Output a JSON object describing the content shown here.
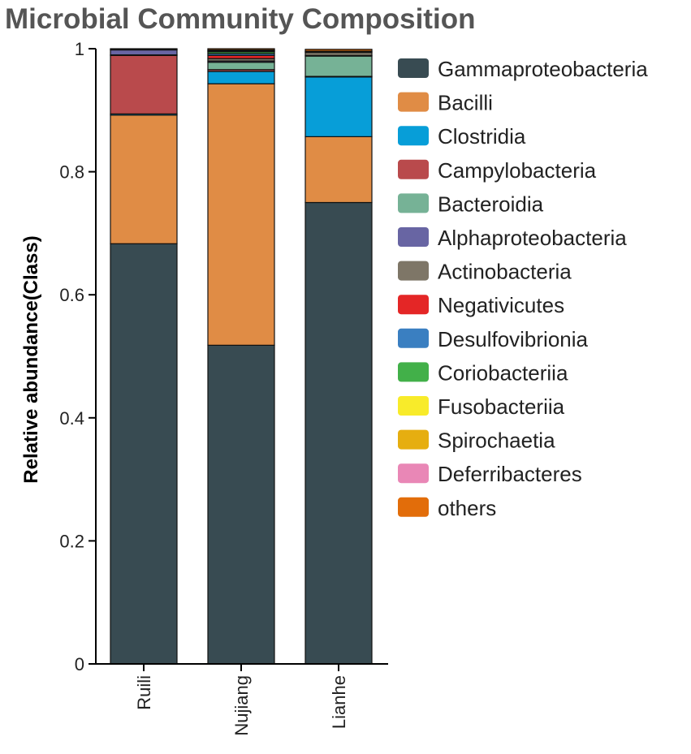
{
  "chart_data": {
    "type": "stacked-bar",
    "title": "Microbial Community Composition",
    "xlabel": "",
    "ylabel": "Relative abundance(Class)",
    "ylim": [
      0,
      1
    ],
    "yticks": [
      {
        "value": 0,
        "label": "0"
      },
      {
        "value": 0.2,
        "label": "0.2"
      },
      {
        "value": 0.4,
        "label": "0.4"
      },
      {
        "value": 0.6,
        "label": "0.6"
      },
      {
        "value": 0.8,
        "label": "0.8"
      },
      {
        "value": 1,
        "label": "1"
      }
    ],
    "categories": [
      "Ruili",
      "Nujiang",
      "Lianhe"
    ],
    "legend_position": "right",
    "series": [
      {
        "name": "Gammaproteobacteria",
        "color": "#384b52",
        "values": [
          0.683,
          0.518,
          0.75
        ]
      },
      {
        "name": "Bacilli",
        "color": "#e08c45",
        "values": [
          0.209,
          0.425,
          0.107
        ]
      },
      {
        "name": "Clostridia",
        "color": "#079ed8",
        "values": [
          0.002,
          0.02,
          0.097
        ]
      },
      {
        "name": "Campylobacteria",
        "color": "#b94a4c",
        "values": [
          0.095,
          0.003,
          0.001
        ]
      },
      {
        "name": "Bacteroidia",
        "color": "#76b296",
        "values": [
          0.001,
          0.012,
          0.033
        ]
      },
      {
        "name": "Alphaproteobacteria",
        "color": "#6865a3",
        "values": [
          0.008,
          0.002,
          0.001
        ]
      },
      {
        "name": "Actinobacteria",
        "color": "#7e7667",
        "values": [
          0.001,
          0.004,
          0.005
        ]
      },
      {
        "name": "Negativicutes",
        "color": "#e42626",
        "values": [
          0.0,
          0.005,
          0.0
        ]
      },
      {
        "name": "Desulfovibrionia",
        "color": "#3a7fc1",
        "values": [
          0.0,
          0.003,
          0.001
        ]
      },
      {
        "name": "Coriobacteriia",
        "color": "#42b049",
        "values": [
          0.0,
          0.003,
          0.001
        ]
      },
      {
        "name": "Fusobacteriia",
        "color": "#f8eb2a",
        "values": [
          0.0,
          0.001,
          0.0
        ]
      },
      {
        "name": "Spirochaetia",
        "color": "#e6ae10",
        "values": [
          0.0,
          0.001,
          0.0
        ]
      },
      {
        "name": "Deferribacteres",
        "color": "#e987b6",
        "values": [
          0.0,
          0.001,
          0.0
        ]
      },
      {
        "name": "others",
        "color": "#e26d0a",
        "values": [
          0.001,
          0.002,
          0.003
        ]
      }
    ]
  }
}
